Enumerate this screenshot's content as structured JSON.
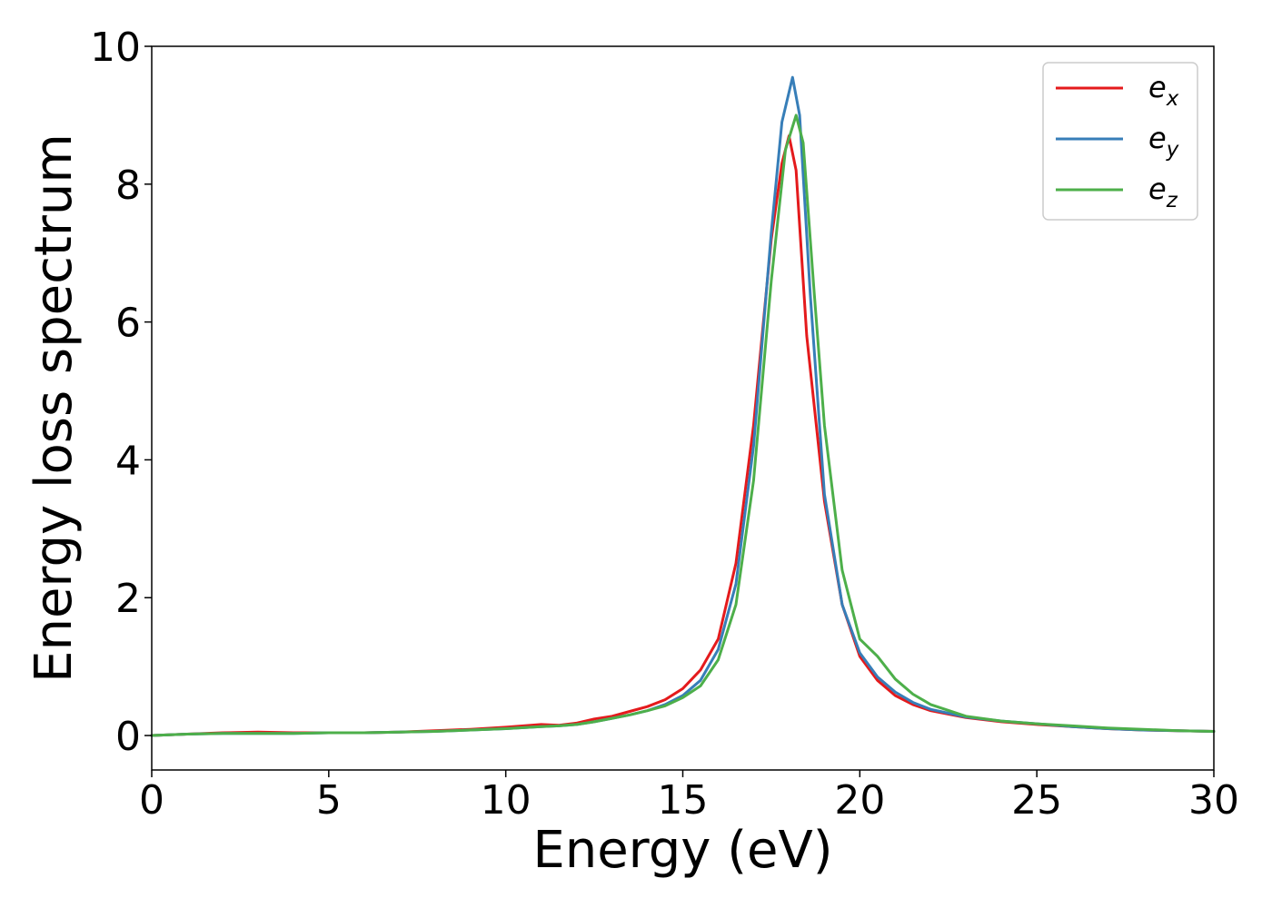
{
  "chart_data": {
    "type": "line",
    "title": "",
    "xlabel": "Energy (eV)",
    "ylabel": "Energy loss spectrum",
    "xlim": [
      0,
      30
    ],
    "ylim": [
      -0.5,
      10
    ],
    "xticks": [
      0,
      5,
      10,
      15,
      20,
      25,
      30
    ],
    "yticks": [
      0,
      2,
      4,
      6,
      8,
      10
    ],
    "grid": false,
    "legend_position": "top-right",
    "series": [
      {
        "name": "e",
        "subscript": "x",
        "color": "#e41a1c",
        "x": [
          0,
          1,
          2,
          3,
          4,
          5,
          6,
          7,
          8,
          9,
          10,
          11,
          11.5,
          12,
          12.5,
          13,
          13.5,
          14,
          14.5,
          15,
          15.5,
          16,
          16.5,
          17,
          17.5,
          17.8,
          18.0,
          18.2,
          18.5,
          19,
          19.5,
          20,
          20.5,
          21,
          21.5,
          22,
          23,
          24,
          25,
          26,
          27,
          28,
          29,
          30
        ],
        "y": [
          0.0,
          0.02,
          0.04,
          0.05,
          0.04,
          0.04,
          0.04,
          0.05,
          0.07,
          0.09,
          0.12,
          0.16,
          0.15,
          0.18,
          0.24,
          0.28,
          0.35,
          0.42,
          0.52,
          0.68,
          0.95,
          1.4,
          2.5,
          4.5,
          7.2,
          8.3,
          8.7,
          8.2,
          5.8,
          3.4,
          1.9,
          1.15,
          0.8,
          0.58,
          0.45,
          0.36,
          0.26,
          0.2,
          0.16,
          0.13,
          0.1,
          0.08,
          0.07,
          0.06
        ]
      },
      {
        "name": "e",
        "subscript": "y",
        "color": "#377eb8",
        "x": [
          0,
          1,
          2,
          3,
          4,
          5,
          6,
          7,
          8,
          9,
          10,
          11,
          11.5,
          12,
          12.5,
          13,
          13.5,
          14,
          14.5,
          15,
          15.5,
          16,
          16.5,
          17,
          17.5,
          17.8,
          18.1,
          18.3,
          18.6,
          19,
          19.5,
          20,
          20.5,
          21,
          21.5,
          22,
          23,
          24,
          25,
          26,
          27,
          28,
          29,
          30
        ],
        "y": [
          0.0,
          0.02,
          0.03,
          0.03,
          0.03,
          0.04,
          0.04,
          0.05,
          0.06,
          0.08,
          0.1,
          0.13,
          0.14,
          0.16,
          0.2,
          0.25,
          0.3,
          0.36,
          0.45,
          0.58,
          0.8,
          1.25,
          2.2,
          4.2,
          7.3,
          8.9,
          9.55,
          9.0,
          6.4,
          3.5,
          1.9,
          1.2,
          0.85,
          0.63,
          0.48,
          0.38,
          0.27,
          0.21,
          0.17,
          0.13,
          0.1,
          0.08,
          0.07,
          0.06
        ]
      },
      {
        "name": "e",
        "subscript": "z",
        "color": "#4daf4a",
        "x": [
          0,
          1,
          2,
          3,
          4,
          5,
          6,
          7,
          8,
          9,
          10,
          11,
          11.5,
          12,
          12.5,
          13,
          13.5,
          14,
          14.5,
          15,
          15.5,
          16,
          16.5,
          17,
          17.5,
          17.9,
          18.2,
          18.4,
          18.7,
          19,
          19.5,
          20,
          20.5,
          21,
          21.5,
          22,
          23,
          24,
          25,
          26,
          27,
          28,
          29,
          30
        ],
        "y": [
          0.0,
          0.02,
          0.03,
          0.03,
          0.03,
          0.04,
          0.04,
          0.05,
          0.06,
          0.08,
          0.1,
          0.13,
          0.14,
          0.16,
          0.2,
          0.25,
          0.3,
          0.36,
          0.43,
          0.55,
          0.72,
          1.1,
          1.9,
          3.7,
          6.6,
          8.5,
          9.0,
          8.6,
          6.5,
          4.5,
          2.4,
          1.4,
          1.15,
          0.82,
          0.6,
          0.45,
          0.28,
          0.21,
          0.17,
          0.14,
          0.11,
          0.09,
          0.07,
          0.06
        ]
      }
    ]
  }
}
